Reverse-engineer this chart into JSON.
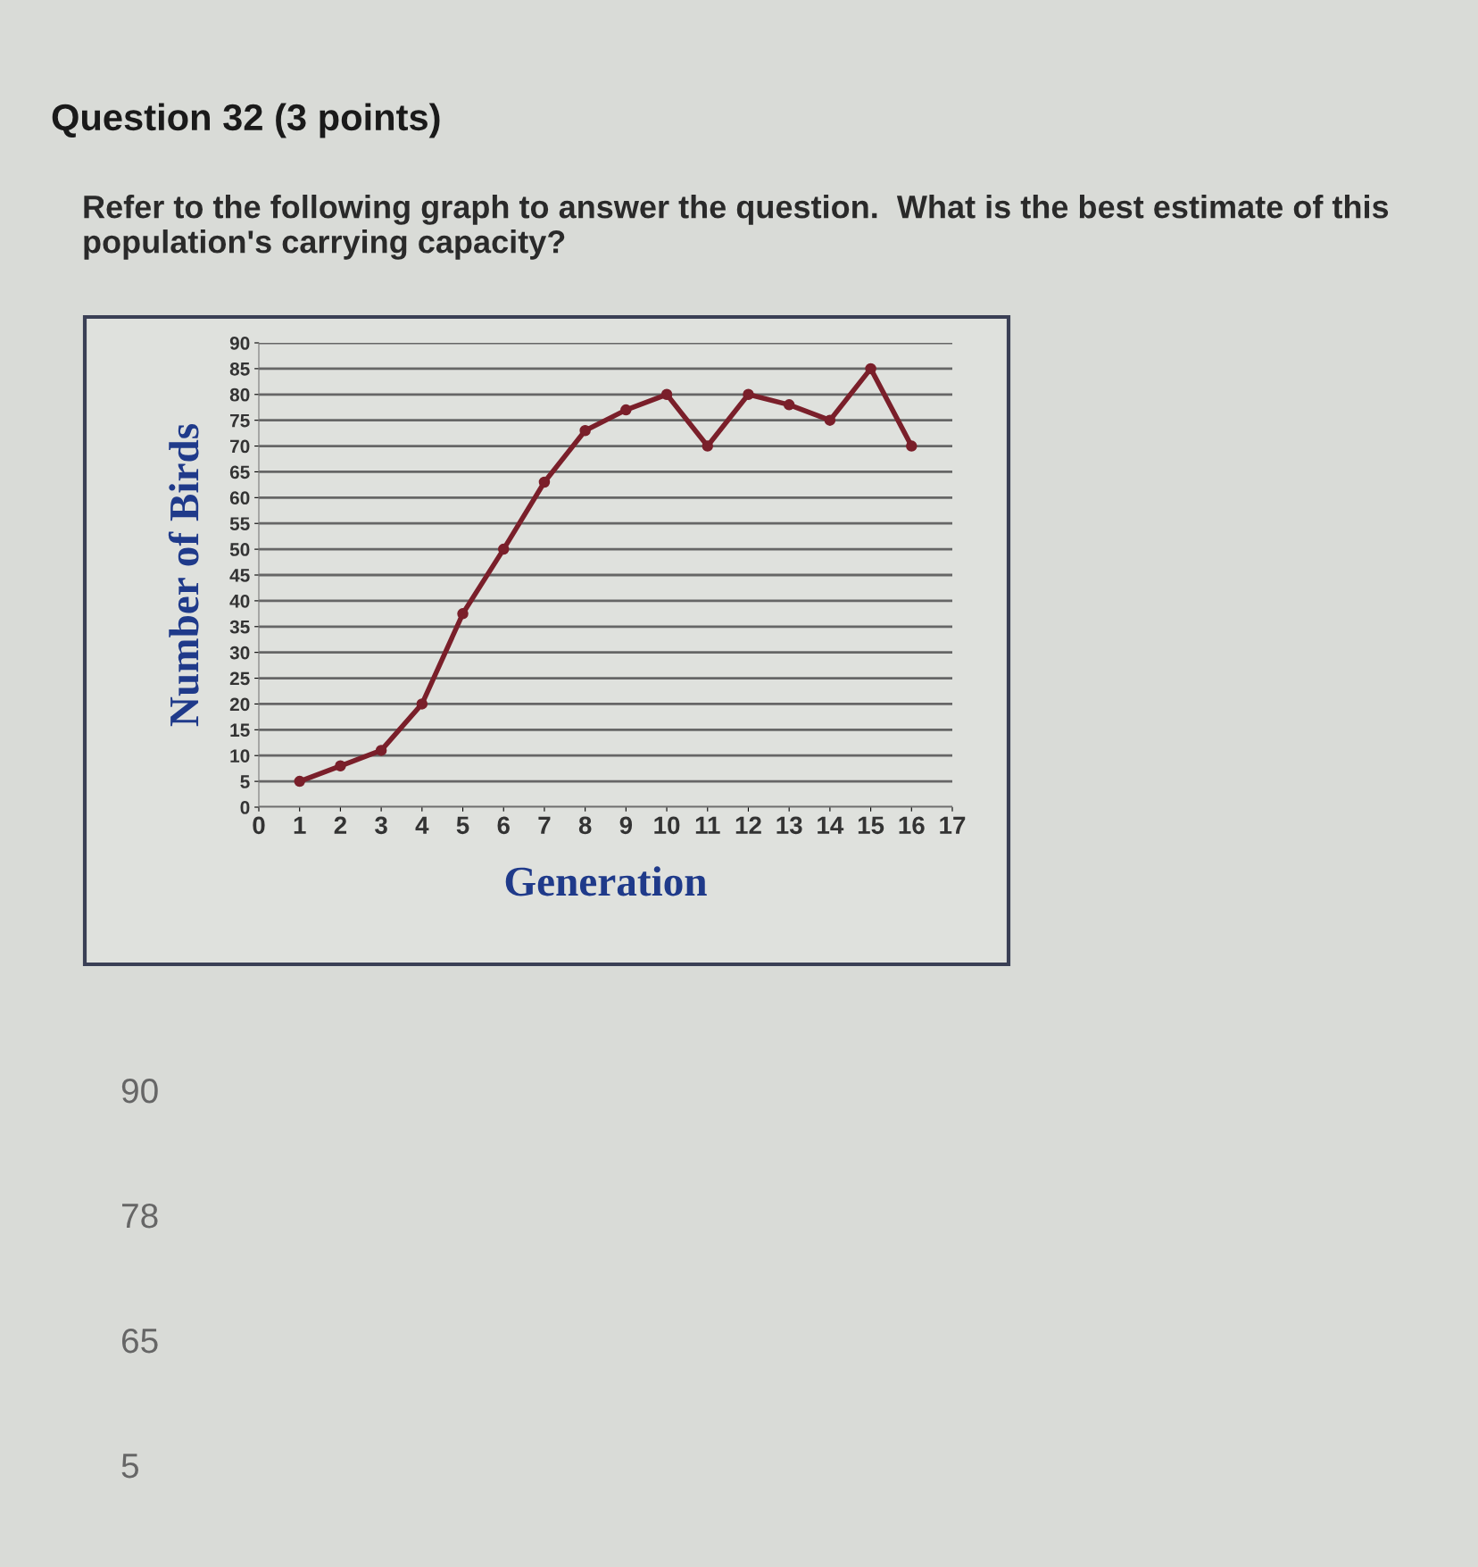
{
  "chart_data": {
    "type": "line",
    "title": "Question 32 (3 points)",
    "subtitle": "Refer to the following graph to answer the question.  What is the best estimate of this population's carrying capacity?",
    "xlabel": "Generation",
    "ylabel": "Number of Birds",
    "x": [
      1,
      2,
      3,
      4,
      5,
      6,
      7,
      8,
      9,
      10,
      11,
      12,
      13,
      14,
      15,
      16
    ],
    "series": [
      {
        "color": "#7a1f2a",
        "values": [
          5,
          8,
          11,
          20,
          37.5,
          50,
          63,
          73,
          77,
          80,
          70,
          80,
          78,
          75,
          85,
          70
        ]
      }
    ],
    "xlim": [
      0,
      17
    ],
    "xticks": [
      0,
      1,
      2,
      3,
      4,
      5,
      6,
      7,
      8,
      9,
      10,
      11,
      12,
      13,
      14,
      15,
      16,
      17
    ],
    "ylim": [
      0,
      90
    ],
    "yticks": [
      0,
      5,
      10,
      15,
      20,
      25,
      30,
      35,
      40,
      45,
      50,
      55,
      60,
      65,
      70,
      75,
      80,
      85,
      90
    ],
    "grid": "y",
    "marker": "circle",
    "line_style": "solid",
    "annotations": [
      "90",
      "78",
      "65",
      "5"
    ]
  }
}
